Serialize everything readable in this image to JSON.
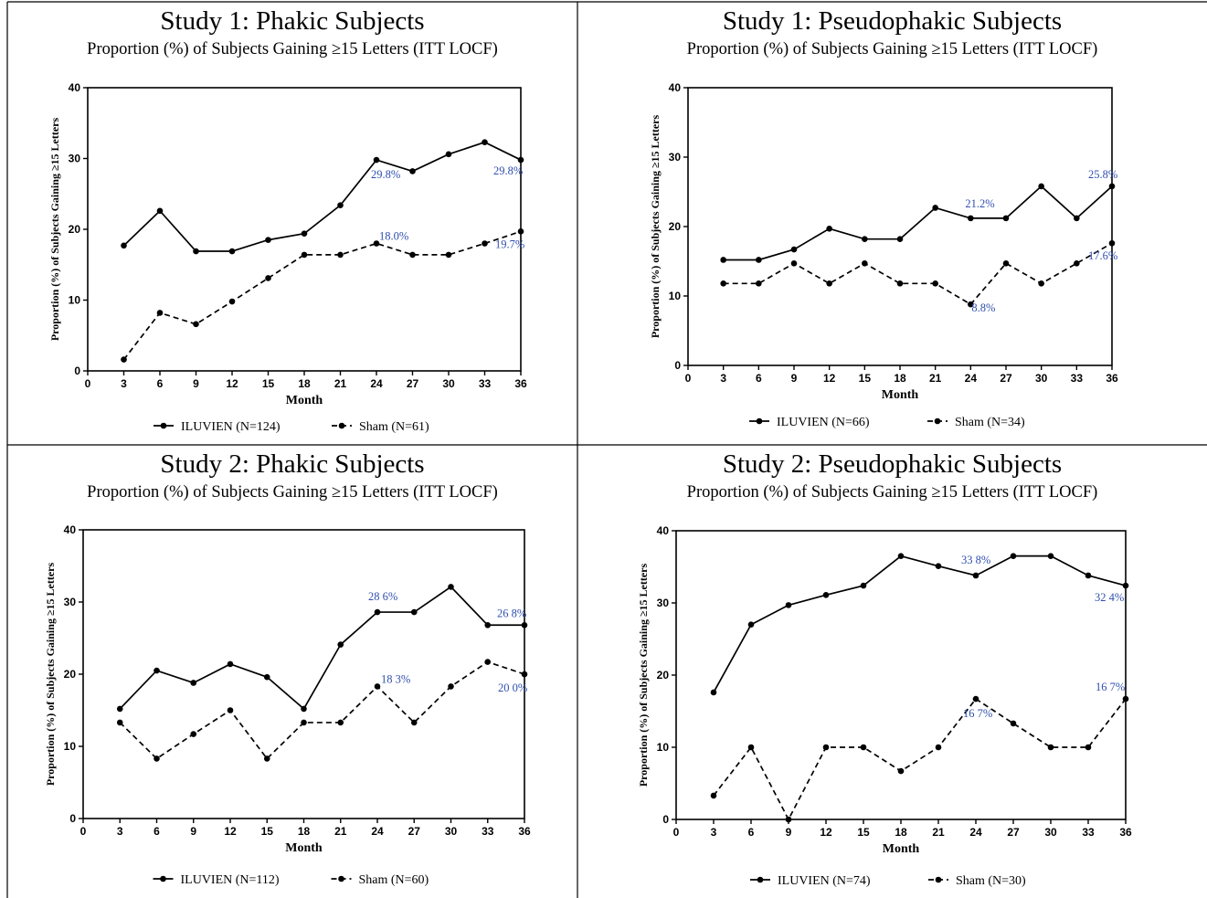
{
  "chart_data": [
    {
      "type": "line",
      "title": "Study 1: Phakic Subjects",
      "subtitle": "Proportion (%) of Subjects Gaining ≥15 Letters (ITT LOCF)",
      "xlabel": "Month",
      "ylabel": "Proportion (%) of Subjects Gaining ≥15 Letters",
      "xlim": [
        0,
        36
      ],
      "ylim": [
        0,
        40
      ],
      "xticks": [
        0,
        3,
        6,
        9,
        12,
        15,
        18,
        21,
        24,
        27,
        30,
        33,
        36
      ],
      "yticks": [
        0,
        10,
        20,
        30,
        40
      ],
      "x": [
        3,
        6,
        9,
        12,
        15,
        18,
        21,
        24,
        27,
        30,
        33,
        36
      ],
      "series": [
        {
          "name": "ILUVIEN (N=124)",
          "style": "solid",
          "values": [
            17.7,
            22.6,
            16.9,
            16.9,
            18.5,
            19.4,
            23.4,
            29.8,
            28.2,
            30.6,
            32.3,
            29.8
          ],
          "labels": [
            {
              "x": 24,
              "text": "29.8%"
            },
            {
              "x": 36,
              "text": "29.8%"
            }
          ]
        },
        {
          "name": "Sham (N=61)",
          "style": "dashed",
          "values": [
            1.6,
            8.2,
            6.6,
            9.8,
            13.1,
            16.4,
            16.4,
            18.0,
            16.4,
            16.4,
            18.0,
            19.7
          ],
          "labels": [
            {
              "x": 24,
              "text": "18.0%"
            },
            {
              "x": 36,
              "text": "19.7%"
            }
          ]
        }
      ],
      "legend": "bottom",
      "grid": false
    },
    {
      "type": "line",
      "title": "Study 1: Pseudophakic Subjects",
      "subtitle": "Proportion (%) of Subjects Gaining ≥15 Letters (ITT LOCF)",
      "xlabel": "Month",
      "ylabel": "Proportion (%) of Subjects Gaining ≥15 Letters",
      "xlim": [
        0,
        36
      ],
      "ylim": [
        0,
        40
      ],
      "xticks": [
        0,
        3,
        6,
        9,
        12,
        15,
        18,
        21,
        24,
        27,
        30,
        33,
        36
      ],
      "yticks": [
        0,
        10,
        20,
        30,
        40
      ],
      "x": [
        3,
        6,
        9,
        12,
        15,
        18,
        21,
        24,
        27,
        30,
        33,
        36
      ],
      "series": [
        {
          "name": "ILUVIEN (N=66)",
          "style": "solid",
          "values": [
            15.2,
            15.2,
            16.7,
            19.7,
            18.2,
            18.2,
            22.7,
            21.2,
            21.2,
            25.8,
            21.2,
            25.8
          ],
          "labels": [
            {
              "x": 24,
              "text": "21.2%"
            },
            {
              "x": 36,
              "text": "25.8%"
            }
          ]
        },
        {
          "name": "Sham (N=34)",
          "style": "dashed",
          "values": [
            11.8,
            11.8,
            14.7,
            11.8,
            14.7,
            11.8,
            11.8,
            8.8,
            14.7,
            11.8,
            14.7,
            17.6
          ],
          "labels": [
            {
              "x": 24,
              "text": "8.8%"
            },
            {
              "x": 36,
              "text": "17.6%"
            }
          ]
        }
      ],
      "legend": "bottom",
      "grid": false
    },
    {
      "type": "line",
      "title": "Study 2: Phakic Subjects",
      "subtitle": "Proportion (%) of Subjects Gaining ≥15 Letters (ITT LOCF)",
      "xlabel": "Month",
      "ylabel": "Proportion (%) of Subjects Gaining ≥15 Letters",
      "xlim": [
        0,
        36
      ],
      "ylim": [
        0,
        40
      ],
      "xticks": [
        0,
        3,
        6,
        9,
        12,
        15,
        18,
        21,
        24,
        27,
        30,
        33,
        36
      ],
      "yticks": [
        0,
        10,
        20,
        30,
        40
      ],
      "x": [
        3,
        6,
        9,
        12,
        15,
        18,
        21,
        24,
        27,
        30,
        33,
        36
      ],
      "series": [
        {
          "name": "ILUVIEN (N=112)",
          "style": "solid",
          "values": [
            15.2,
            20.5,
            18.8,
            21.4,
            19.6,
            15.2,
            24.1,
            28.6,
            28.6,
            32.1,
            26.8,
            26.8
          ],
          "labels": [
            {
              "x": 24,
              "text": "28 6%"
            },
            {
              "x": 36,
              "text": "26 8%"
            }
          ]
        },
        {
          "name": "Sham (N=60)",
          "style": "dashed",
          "values": [
            13.3,
            8.3,
            11.7,
            15.0,
            8.3,
            13.3,
            13.3,
            18.3,
            13.3,
            18.3,
            21.7,
            20.0
          ],
          "labels": [
            {
              "x": 24,
              "text": "18 3%"
            },
            {
              "x": 36,
              "text": "20 0%"
            }
          ]
        }
      ],
      "legend": "bottom",
      "grid": false
    },
    {
      "type": "line",
      "title": "Study 2: Pseudophakic Subjects",
      "subtitle": "Proportion (%) of Subjects Gaining ≥15 Letters (ITT LOCF)",
      "xlabel": "Month",
      "ylabel": "Proportion (%) of Subjects Gaining ≥15 Letters",
      "xlim": [
        0,
        36
      ],
      "ylim": [
        0,
        40
      ],
      "xticks": [
        0,
        3,
        6,
        9,
        12,
        15,
        18,
        21,
        24,
        27,
        30,
        33,
        36
      ],
      "yticks": [
        0,
        10,
        20,
        30,
        40
      ],
      "x": [
        3,
        6,
        9,
        12,
        15,
        18,
        21,
        24,
        27,
        30,
        33,
        36
      ],
      "series": [
        {
          "name": "ILUVIEN (N=74)",
          "style": "solid",
          "values": [
            17.6,
            27.0,
            29.7,
            31.1,
            32.4,
            36.5,
            35.1,
            33.8,
            36.5,
            36.5,
            33.8,
            32.4
          ],
          "labels": [
            {
              "x": 24,
              "text": "33 8%"
            },
            {
              "x": 36,
              "text": "32 4%"
            }
          ]
        },
        {
          "name": "Sham (N=30)",
          "style": "dashed",
          "values": [
            3.3,
            10.0,
            0.0,
            10.0,
            10.0,
            6.7,
            10.0,
            16.7,
            13.3,
            10.0,
            10.0,
            16.7
          ],
          "labels": [
            {
              "x": 24,
              "text": "16 7%"
            },
            {
              "x": 36,
              "text": "16 7%"
            }
          ]
        }
      ],
      "legend": "bottom",
      "grid": false
    }
  ]
}
